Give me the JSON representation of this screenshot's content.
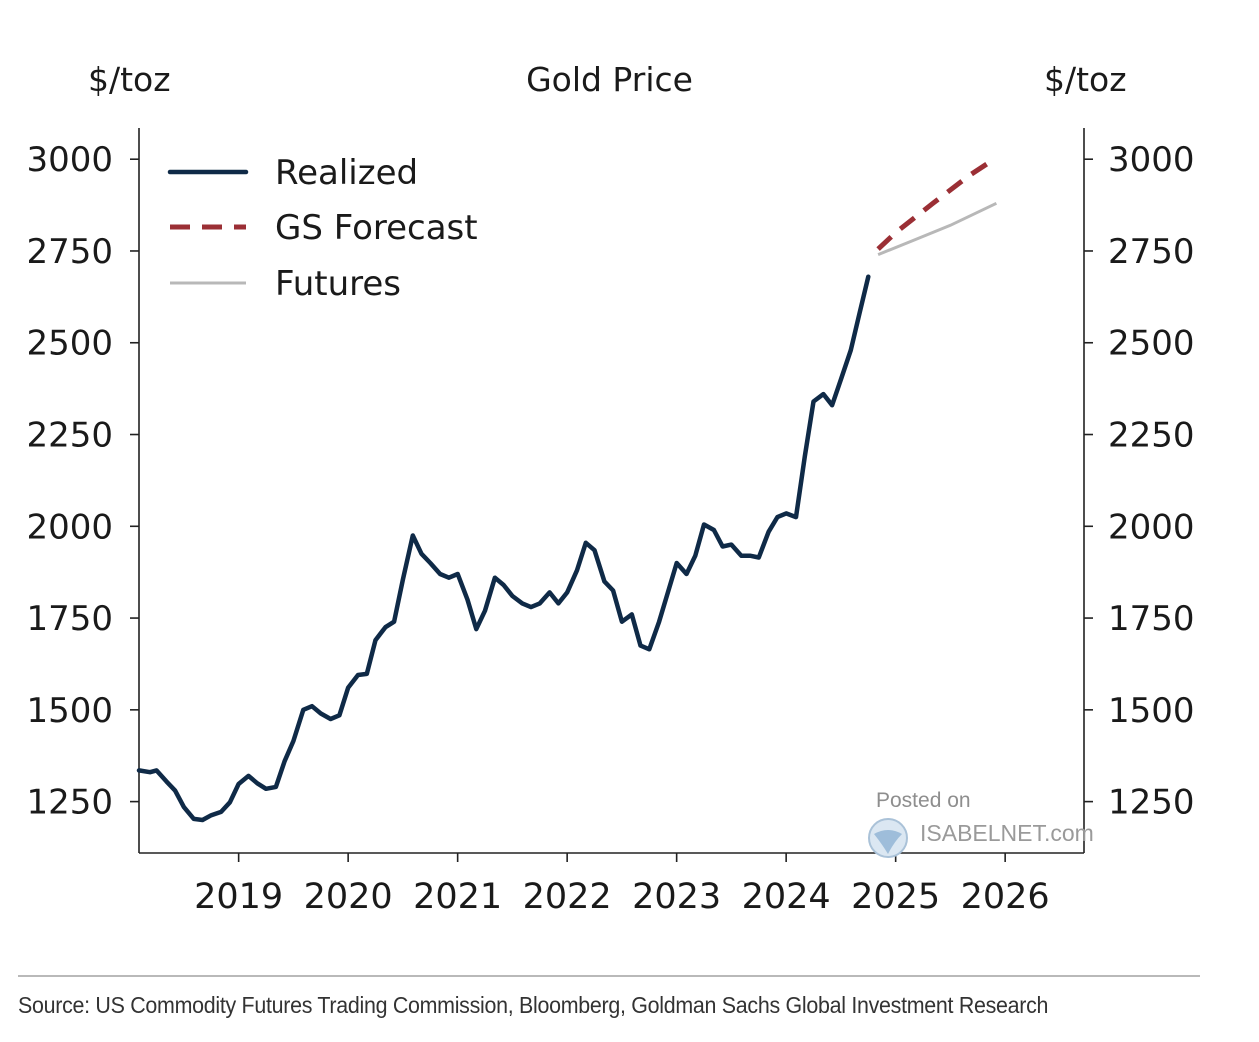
{
  "chart_data": {
    "type": "line",
    "title": "Gold Price",
    "ylabel_left": "$/toz",
    "ylabel_right": "$/toz",
    "xlabel": "",
    "ylim": [
      1110,
      3085
    ],
    "xlim": [
      2018.17,
      2026.8
    ],
    "yticks": [
      1250,
      1500,
      1750,
      2000,
      2250,
      2500,
      2750,
      3000
    ],
    "xticks": [
      {
        "value": 2019.08,
        "label": "2019"
      },
      {
        "value": 2020.08,
        "label": "2020"
      },
      {
        "value": 2021.08,
        "label": "2021"
      },
      {
        "value": 2022.08,
        "label": "2022"
      },
      {
        "value": 2023.08,
        "label": "2023"
      },
      {
        "value": 2024.08,
        "label": "2024"
      },
      {
        "value": 2025.08,
        "label": "2025"
      },
      {
        "value": 2026.08,
        "label": "2026"
      }
    ],
    "legend_position": "top-left",
    "series": [
      {
        "name": "Realized",
        "color": "#0f2a47",
        "style": "solid",
        "points": [
          [
            2018.17,
            1335
          ],
          [
            2018.27,
            1330
          ],
          [
            2018.33,
            1335
          ],
          [
            2018.42,
            1305
          ],
          [
            2018.5,
            1280
          ],
          [
            2018.58,
            1235
          ],
          [
            2018.67,
            1203
          ],
          [
            2018.75,
            1200
          ],
          [
            2018.83,
            1213
          ],
          [
            2018.92,
            1222
          ],
          [
            2019.0,
            1248
          ],
          [
            2019.08,
            1298
          ],
          [
            2019.17,
            1320
          ],
          [
            2019.25,
            1300
          ],
          [
            2019.33,
            1285
          ],
          [
            2019.42,
            1290
          ],
          [
            2019.5,
            1360
          ],
          [
            2019.58,
            1415
          ],
          [
            2019.67,
            1500
          ],
          [
            2019.75,
            1510
          ],
          [
            2019.83,
            1490
          ],
          [
            2019.92,
            1475
          ],
          [
            2020.0,
            1485
          ],
          [
            2020.08,
            1560
          ],
          [
            2020.17,
            1595
          ],
          [
            2020.25,
            1598
          ],
          [
            2020.33,
            1690
          ],
          [
            2020.42,
            1725
          ],
          [
            2020.5,
            1740
          ],
          [
            2020.58,
            1855
          ],
          [
            2020.67,
            1975
          ],
          [
            2020.75,
            1925
          ],
          [
            2020.83,
            1900
          ],
          [
            2020.92,
            1870
          ],
          [
            2021.0,
            1860
          ],
          [
            2021.08,
            1870
          ],
          [
            2021.17,
            1800
          ],
          [
            2021.25,
            1720
          ],
          [
            2021.33,
            1770
          ],
          [
            2021.42,
            1860
          ],
          [
            2021.5,
            1840
          ],
          [
            2021.58,
            1810
          ],
          [
            2021.67,
            1790
          ],
          [
            2021.75,
            1780
          ],
          [
            2021.83,
            1790
          ],
          [
            2021.92,
            1820
          ],
          [
            2022.0,
            1790
          ],
          [
            2022.08,
            1820
          ],
          [
            2022.17,
            1880
          ],
          [
            2022.25,
            1955
          ],
          [
            2022.33,
            1935
          ],
          [
            2022.42,
            1850
          ],
          [
            2022.5,
            1825
          ],
          [
            2022.58,
            1740
          ],
          [
            2022.67,
            1760
          ],
          [
            2022.75,
            1675
          ],
          [
            2022.83,
            1665
          ],
          [
            2022.92,
            1740
          ],
          [
            2023.0,
            1820
          ],
          [
            2023.08,
            1900
          ],
          [
            2023.17,
            1870
          ],
          [
            2023.25,
            1920
          ],
          [
            2023.33,
            2005
          ],
          [
            2023.42,
            1990
          ],
          [
            2023.5,
            1945
          ],
          [
            2023.58,
            1950
          ],
          [
            2023.67,
            1920
          ],
          [
            2023.75,
            1920
          ],
          [
            2023.83,
            1915
          ],
          [
            2023.92,
            1985
          ],
          [
            2024.0,
            2025
          ],
          [
            2024.08,
            2035
          ],
          [
            2024.17,
            2025
          ],
          [
            2024.25,
            2190
          ],
          [
            2024.33,
            2340
          ],
          [
            2024.42,
            2360
          ],
          [
            2024.5,
            2330
          ],
          [
            2024.58,
            2400
          ],
          [
            2024.67,
            2480
          ],
          [
            2024.75,
            2580
          ],
          [
            2024.83,
            2680
          ]
        ]
      },
      {
        "name": "GS Forecast",
        "color": "#9b2f35",
        "style": "dashed",
        "points": [
          [
            2024.92,
            2755
          ],
          [
            2025.08,
            2800
          ],
          [
            2025.42,
            2880
          ],
          [
            2025.75,
            2955
          ],
          [
            2025.98,
            3000
          ]
        ]
      },
      {
        "name": "Futures",
        "color": "#b8b8b8",
        "style": "solid",
        "points": [
          [
            2024.92,
            2740
          ],
          [
            2025.25,
            2780
          ],
          [
            2025.58,
            2820
          ],
          [
            2026.0,
            2880
          ]
        ]
      }
    ]
  },
  "watermark": {
    "line1": "Posted on",
    "line2": "ISABELNET.com"
  },
  "source": "Source: US Commodity Futures Trading Commission, Bloomberg, Goldman Sachs Global Investment Research"
}
